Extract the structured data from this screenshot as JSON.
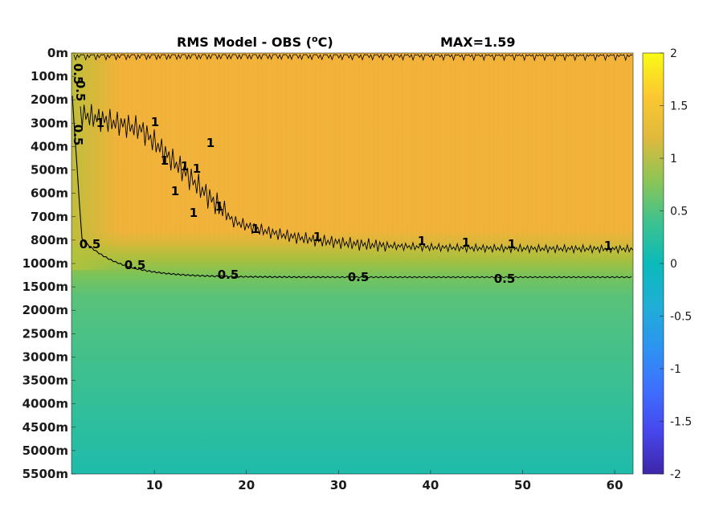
{
  "chart_data": {
    "type": "heatmap",
    "title": "RMS Model - OBS (",
    "title_sup": "o",
    "title_unit": "C)",
    "max_label": "MAX=1.59",
    "x_ticks": [
      10,
      20,
      30,
      40,
      50,
      60
    ],
    "xlim": [
      1,
      62
    ],
    "y_ticks": [
      "0m",
      "100m",
      "200m",
      "300m",
      "400m",
      "500m",
      "600m",
      "700m",
      "800m",
      "1000m",
      "1500m",
      "2000m",
      "2500m",
      "3000m",
      "3500m",
      "4000m",
      "4500m",
      "5000m",
      "5500m"
    ],
    "colorbar": {
      "ticks": [
        "2",
        "1.5",
        "1",
        "0.5",
        "0",
        "-0.5",
        "-1",
        "-1.5",
        "-2"
      ],
      "range": [
        -2,
        2
      ],
      "colormap": "parula"
    },
    "field_profile": {
      "levels": [
        "0m",
        "100m",
        "200m",
        "300m",
        "400m",
        "500m",
        "600m",
        "700m",
        "800m",
        "1000m",
        "1500m",
        "2000m",
        "2500m",
        "3000m",
        "3500m",
        "4000m",
        "4500m",
        "5000m",
        "5500m"
      ],
      "values": [
        1.3,
        1.2,
        1.2,
        1.2,
        1.2,
        1.2,
        1.2,
        1.2,
        1.1,
        0.9,
        0.65,
        0.6,
        0.58,
        0.55,
        0.52,
        0.48,
        0.45,
        0.4,
        0.35
      ]
    },
    "contour_labels": {
      "level_1": [
        "1",
        "1",
        "1",
        "1",
        "1",
        "1",
        "1",
        "1",
        "1",
        "1",
        "1",
        "1",
        "1",
        "1",
        "1"
      ],
      "level_0_5": [
        "0.5",
        "0.5",
        "0.5",
        "0.5",
        "0.5",
        "0.5",
        "0.5",
        "0.5"
      ]
    }
  }
}
